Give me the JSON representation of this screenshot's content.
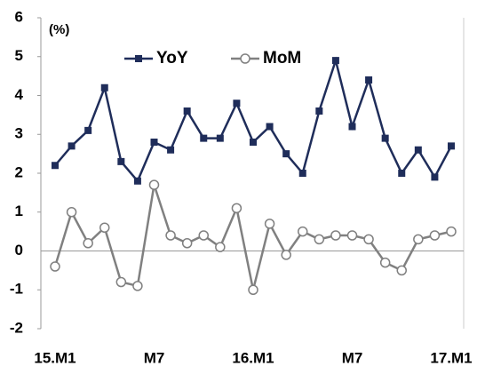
{
  "chart_data": {
    "type": "line",
    "unit_label": "(%)",
    "categories": [
      "15.M1",
      null,
      null,
      null,
      null,
      null,
      "M7",
      null,
      null,
      null,
      null,
      null,
      "16.M1",
      null,
      null,
      null,
      null,
      null,
      "M7",
      null,
      null,
      null,
      null,
      null,
      "17.M1"
    ],
    "series": [
      {
        "name": "YoY",
        "color": "#1f2d5a",
        "marker": "square",
        "values": [
          2.2,
          2.7,
          3.1,
          4.2,
          2.3,
          1.8,
          2.8,
          2.6,
          3.6,
          2.9,
          2.9,
          3.8,
          2.8,
          3.2,
          2.5,
          2.0,
          3.6,
          4.9,
          3.2,
          4.4,
          2.9,
          2.0,
          2.6,
          1.9,
          2.7
        ]
      },
      {
        "name": "MoM",
        "color": "#808080",
        "marker": "circle",
        "values": [
          -0.4,
          1.0,
          0.2,
          0.6,
          -0.8,
          -0.9,
          1.7,
          0.4,
          0.2,
          0.4,
          0.1,
          1.1,
          -1.0,
          0.7,
          -0.1,
          0.5,
          0.3,
          0.4,
          0.4,
          0.3,
          -0.3,
          -0.5,
          0.3,
          0.4,
          0.5
        ]
      }
    ],
    "ylim": [
      -2,
      6
    ],
    "yticks": [
      -2,
      -1,
      0,
      1,
      2,
      3,
      4,
      5,
      6
    ],
    "grid": false
  }
}
